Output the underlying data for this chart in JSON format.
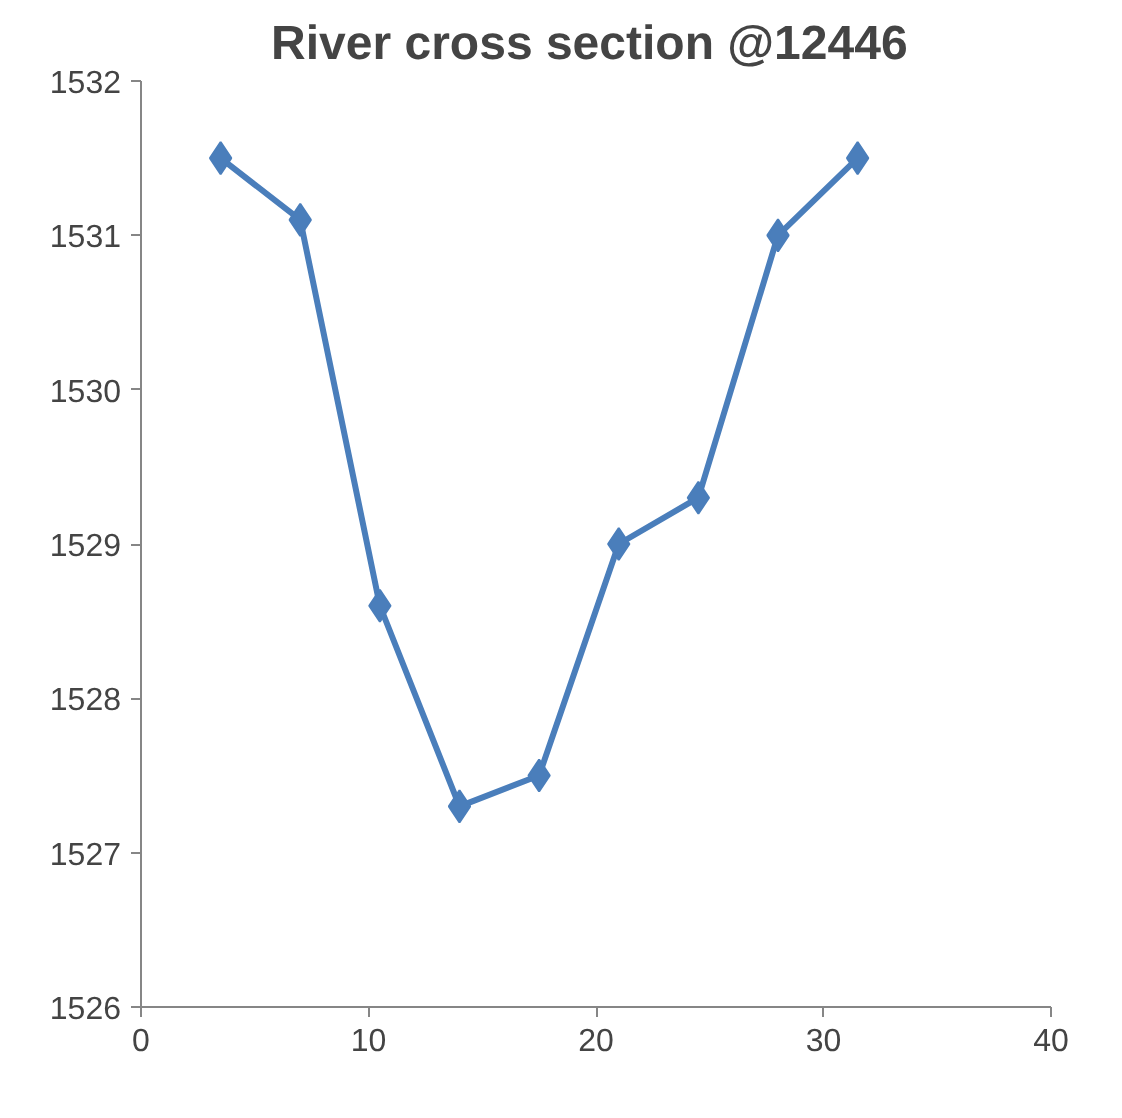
{
  "chart_data": {
    "type": "line",
    "title": "River cross section  @12446",
    "x": [
      3.5,
      7,
      10.5,
      14,
      17.5,
      21,
      24.5,
      28,
      31.5
    ],
    "series": [
      {
        "color": "#4a7ebb",
        "values": [
          1531.5,
          1531.1,
          1528.6,
          1527.3,
          1527.5,
          1529.0,
          1529.3,
          1531.0,
          1531.5
        ]
      }
    ],
    "xlim": [
      0,
      40
    ],
    "xticks": [
      0,
      10,
      20,
      30,
      40
    ],
    "ylim": [
      1526,
      1532
    ],
    "yticks": [
      1526,
      1527,
      1528,
      1529,
      1530,
      1531,
      1532
    ],
    "grid": false,
    "marker": "diamond",
    "line_style": "solid"
  }
}
